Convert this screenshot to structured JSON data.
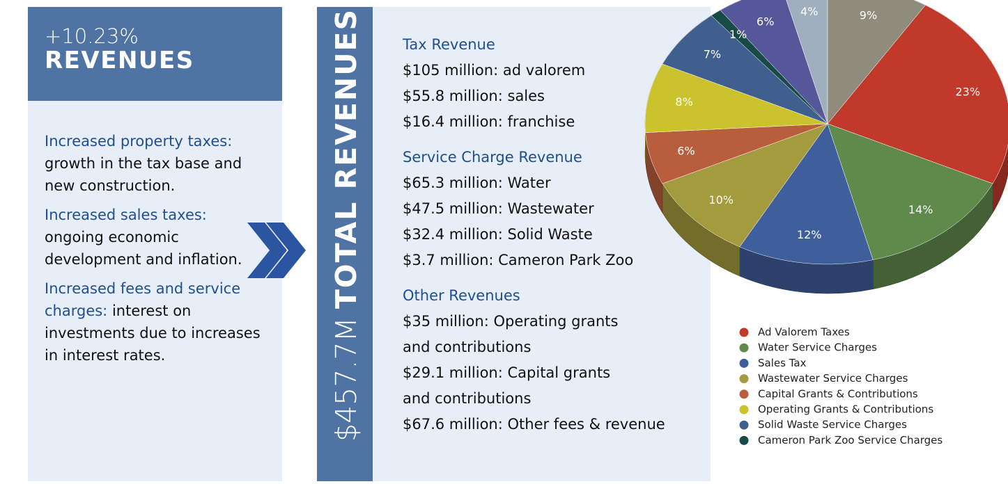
{
  "left": {
    "change": "+10.23%",
    "title": "REVENUES",
    "items": [
      {
        "label": "Increased property taxes:",
        "text": "growth in the tax base and new construction."
      },
      {
        "label": "Increased sales taxes:",
        "text": "ongoing economic development and inflation."
      },
      {
        "label": "Increased fees and service charges:",
        "text": "interest on investments due to increases in interest rates."
      }
    ]
  },
  "middle": {
    "total": "$457.7M",
    "title": "TOTAL REVENUES",
    "sections": [
      {
        "heading": "Tax Revenue",
        "lines": [
          "$105 million: ad valorem",
          "$55.8 million: sales",
          "$16.4 million: franchise"
        ]
      },
      {
        "heading": "Service Charge Revenue",
        "lines": [
          "$65.3 million: Water",
          "$47.5 million: Wastewater",
          "$32.4 million: Solid Waste",
          "$3.7 million: Cameron Park Zoo"
        ]
      },
      {
        "heading": "Other Revenues",
        "lines": [
          "$35 million: Operating grants",
          "and contributions",
          "$29.1 million: Capital grants",
          "and contributions",
          "$67.6 million: Other fees & revenue"
        ]
      }
    ]
  },
  "chart_data": {
    "type": "pie",
    "categories": [
      "Ad Valorem Taxes",
      "Water Service Charges",
      "Sales Tax",
      "Wastewater Service Charges",
      "Capital Grants & Contributions",
      "Operating Grants & Contributions",
      "Solid Waste Service Charges",
      "Cameron Park Zoo Service Charges",
      null,
      null,
      null
    ],
    "values": [
      23,
      14,
      12,
      10,
      6,
      8,
      7,
      1,
      6,
      4,
      9
    ],
    "value_labels": [
      "23%",
      "14%",
      "12%",
      "10%",
      "6%",
      "8%",
      "7%",
      "1%",
      "6%",
      "4%",
      "9%"
    ],
    "colors": [
      "#c0392a",
      "#5f8a4c",
      "#3f5e9c",
      "#a49a3e",
      "#b95e3d",
      "#cbc32d",
      "#3f5f8e",
      "#184a47",
      "#56569a",
      "#a0afc0",
      "#8f8c7b"
    ]
  }
}
